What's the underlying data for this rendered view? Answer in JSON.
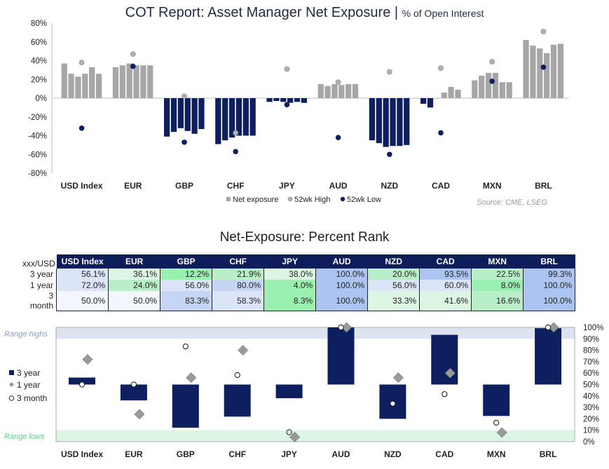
{
  "top_chart": {
    "title_main": "COT Report: Asset Manager Net Exposure |",
    "title_sub": "% of Open Interest",
    "source": "Source: CME, LSEG",
    "legend": {
      "net": "Net exposure",
      "high": "52wk High",
      "low": "52wk Low"
    },
    "colors": {
      "bar": "#a6a6a6",
      "bar_negative": "#0d1f5e",
      "high_marker": "#b0b0b0",
      "low_marker": "#0d1f5e"
    }
  },
  "bottom_chart": {
    "title": "Net-Exposure: Percent Rank",
    "corner_label": "xxx/USD",
    "row_labels": [
      "3 year",
      "1 year",
      "3 month"
    ],
    "range_highs_label": "Range highs",
    "range_lows_label": "Range lows",
    "legend": {
      "y3": "3 year",
      "y1": "1 year",
      "m3": "3 month"
    },
    "colors": {
      "bar": "#0d1f5e",
      "diamond": "#9a9a9a",
      "range_high_band": "#dde3ef",
      "range_low_band": "#ddf5e4"
    }
  },
  "chart_data": [
    {
      "type": "bar",
      "title": "COT Report: Asset Manager Net Exposure | % of Open Interest",
      "categories": [
        "USD Index",
        "EUR",
        "GBP",
        "CHF",
        "JPY",
        "AUD",
        "NZD",
        "CAD",
        "MXN",
        "BRL"
      ],
      "ylim": [
        -80,
        80
      ],
      "yticks": [
        80,
        60,
        40,
        20,
        0,
        -20,
        -40,
        -60,
        -80
      ],
      "ytick_labels": [
        "80%",
        "60%",
        "40%",
        "20%",
        "0%",
        "-20%",
        "-40%",
        "-60%",
        "-80%"
      ],
      "series": [
        {
          "name": "Net exposure",
          "values": [
            [
              37,
              26,
              23,
              26,
              33,
              26
            ],
            [
              33,
              35,
              37,
              35,
              35,
              35
            ],
            [
              -41,
              -36,
              -32,
              -35,
              -38,
              -33
            ],
            [
              -49,
              -45,
              -42,
              -40,
              -40,
              -40
            ],
            [
              -4,
              -3,
              -4,
              -5,
              -4,
              -5
            ],
            [
              15,
              13,
              15,
              14,
              15,
              15
            ],
            [
              -45,
              -48,
              -52,
              -51,
              -51,
              -50
            ],
            [
              -6,
              -10,
              0,
              6,
              12,
              9
            ],
            [
              19,
              24,
              27,
              27,
              17,
              17
            ],
            [
              62,
              56,
              53,
              48,
              57,
              58
            ]
          ]
        },
        {
          "name": "52wk High",
          "values": [
            38,
            47,
            2,
            -37,
            31,
            17,
            28,
            32,
            39,
            71
          ]
        },
        {
          "name": "52wk Low",
          "values": [
            -32,
            34,
            -47,
            -57,
            -7,
            -42,
            -60,
            -37,
            18,
            33
          ]
        }
      ],
      "grid": false,
      "legend_position": "bottom"
    },
    {
      "type": "table",
      "title": "Net-Exposure: Percent Rank",
      "columns": [
        "USD Index",
        "EUR",
        "GBP",
        "CHF",
        "JPY",
        "AUD",
        "NZD",
        "CAD",
        "MXN",
        "BRL"
      ],
      "rows": [
        {
          "label": "3 year",
          "values": [
            "56.1%",
            "36.1%",
            "12.2%",
            "21.9%",
            "38.0%",
            "100.0%",
            "20.0%",
            "93.5%",
            "22.5%",
            "99.3%"
          ]
        },
        {
          "label": "1 year",
          "values": [
            "72.0%",
            "24.0%",
            "56.0%",
            "80.0%",
            "4.0%",
            "100.0%",
            "56.0%",
            "60.0%",
            "8.0%",
            "100.0%"
          ]
        },
        {
          "label": "3 month",
          "values": [
            "50.0%",
            "50.0%",
            "83.3%",
            "58.3%",
            "8.3%",
            "100.0%",
            "33.3%",
            "41.6%",
            "16.6%",
            "100.0%"
          ]
        }
      ]
    },
    {
      "type": "bar",
      "categories": [
        "USD Index",
        "EUR",
        "GBP",
        "CHF",
        "JPY",
        "AUD",
        "NZD",
        "CAD",
        "MXN",
        "BRL"
      ],
      "baseline": 50,
      "ylim": [
        0,
        100
      ],
      "yticks": [
        100,
        90,
        80,
        70,
        60,
        50,
        40,
        30,
        20,
        10,
        0
      ],
      "ytick_labels": [
        "100%",
        "90%",
        "80%",
        "70%",
        "60%",
        "50%",
        "40%",
        "30%",
        "20%",
        "10%",
        "0%"
      ],
      "range_highs": [
        90,
        100
      ],
      "range_lows": [
        0,
        10
      ],
      "series": [
        {
          "name": "3 year",
          "values": [
            56.1,
            36.1,
            12.2,
            21.9,
            38.0,
            100.0,
            20.0,
            93.5,
            22.5,
            99.3
          ]
        },
        {
          "name": "1 year",
          "values": [
            72.0,
            24.0,
            56.0,
            80.0,
            4.0,
            100.0,
            56.0,
            60.0,
            8.0,
            100.0
          ]
        },
        {
          "name": "3 month",
          "values": [
            50.0,
            50.0,
            83.3,
            58.3,
            8.3,
            100.0,
            33.3,
            41.6,
            16.6,
            100.0
          ]
        }
      ],
      "legend_position": "left"
    }
  ]
}
